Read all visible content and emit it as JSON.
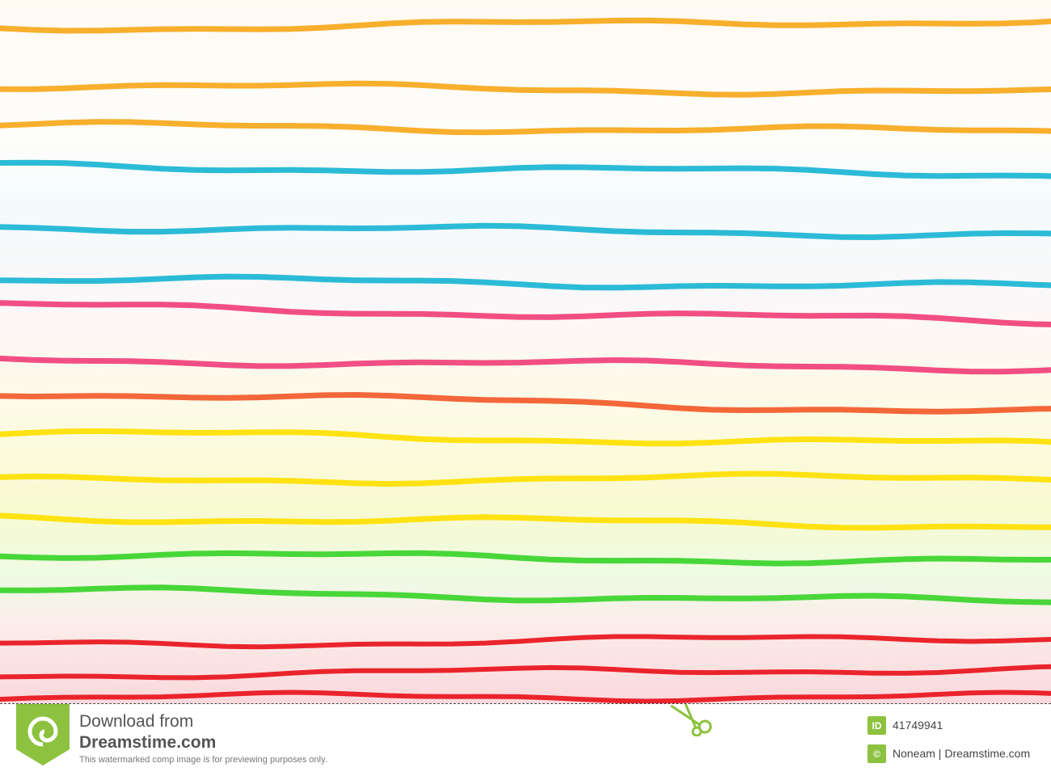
{
  "photo": {
    "line_colors": [
      "#f7a81b",
      "#1ab5d4",
      "#f0407a",
      "#f25a2a",
      "#ffe000",
      "#3ad42a",
      "#e8141c"
    ]
  },
  "watermark": {
    "line1": "Download from",
    "line2": "Dreamstime.com",
    "notice": "This watermarked comp image is for previewing purposes only.",
    "id_badge": "ID",
    "image_id": "41749941",
    "credit": "Noneam | Dreamstime.com",
    "brand_color": "#8cc23f",
    "icons": [
      "dreamstime-spiral-logo",
      "scissors-icon",
      "id-icon",
      "copyright-icon"
    ]
  }
}
